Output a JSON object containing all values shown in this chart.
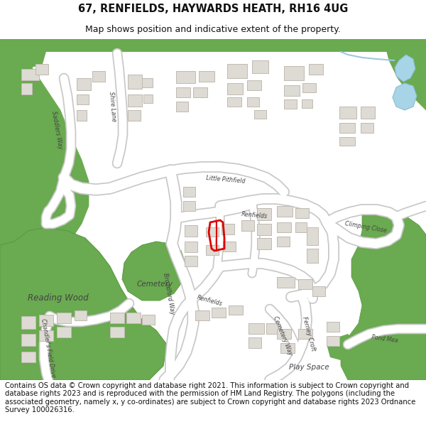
{
  "title_line1": "67, RENFIELDS, HAYWARDS HEATH, RH16 4UG",
  "title_line2": "Map shows position and indicative extent of the property.",
  "footer_text": "Contains OS data © Crown copyright and database right 2021. This information is subject to Crown copyright and database rights 2023 and is reproduced with the permission of HM Land Registry. The polygons (including the associated geometry, namely x, y co-ordinates) are subject to Crown copyright and database rights 2023 Ordnance Survey 100026316.",
  "title_fontsize": 10.5,
  "subtitle_fontsize": 9.0,
  "footer_fontsize": 7.2,
  "fig_width": 6.0,
  "fig_height": 6.25,
  "map_bg_color": "#f5f3f0",
  "road_color": "#ffffff",
  "road_outline_color": "#c8c8c8",
  "green_color": "#6aaa50",
  "building_color": "#dedad4",
  "building_outline": "#c0bab2",
  "water_color": "#a8d4e8",
  "red_outline_color": "#dd0000"
}
